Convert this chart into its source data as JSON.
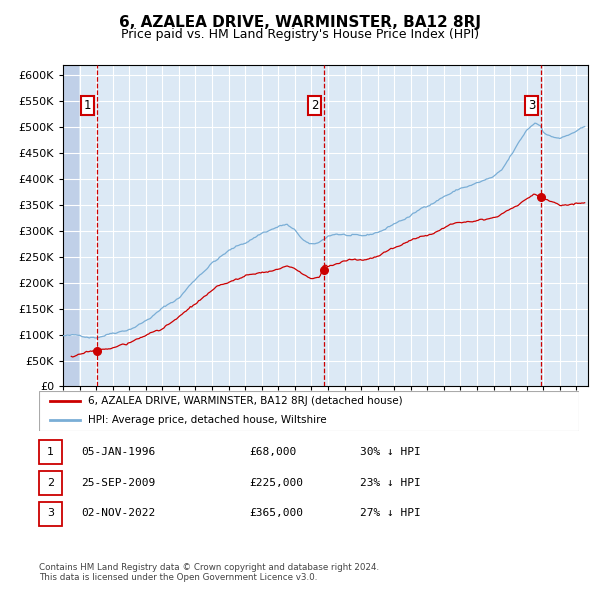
{
  "title": "6, AZALEA DRIVE, WARMINSTER, BA12 8RJ",
  "subtitle": "Price paid vs. HM Land Registry's House Price Index (HPI)",
  "background_color": "#dce9f5",
  "hatch_color": "#c0d0e8",
  "grid_color": "#ffffff",
  "red_line_color": "#cc0000",
  "blue_line_color": "#7aaed6",
  "sale_marker_color": "#cc0000",
  "vline_color": "#cc0000",
  "ylim": [
    0,
    620000
  ],
  "yticks": [
    0,
    50000,
    100000,
    150000,
    200000,
    250000,
    300000,
    350000,
    400000,
    450000,
    500000,
    550000,
    600000
  ],
  "xstart": 1994.0,
  "xend": 2025.7,
  "sales": [
    {
      "label": "1",
      "date_str": "05-JAN-1996",
      "year": 1996.03,
      "price": 68000
    },
    {
      "label": "2",
      "date_str": "25-SEP-2009",
      "year": 2009.73,
      "price": 225000
    },
    {
      "label": "3",
      "date_str": "02-NOV-2022",
      "year": 2022.84,
      "price": 365000
    }
  ],
  "legend_line1": "6, AZALEA DRIVE, WARMINSTER, BA12 8RJ (detached house)",
  "legend_line2": "HPI: Average price, detached house, Wiltshire",
  "table_rows": [
    {
      "num": "1",
      "date": "05-JAN-1996",
      "price": "£68,000",
      "hpi": "30% ↓ HPI"
    },
    {
      "num": "2",
      "date": "25-SEP-2009",
      "price": "£225,000",
      "hpi": "23% ↓ HPI"
    },
    {
      "num": "3",
      "date": "02-NOV-2022",
      "price": "£365,000",
      "hpi": "27% ↓ HPI"
    }
  ],
  "footnote": "Contains HM Land Registry data © Crown copyright and database right 2024.\nThis data is licensed under the Open Government Licence v3.0.",
  "blue_keypoints": [
    [
      1994.0,
      98000
    ],
    [
      1995.0,
      96000
    ],
    [
      1996.0,
      97000
    ],
    [
      1997.0,
      108000
    ],
    [
      1998.0,
      118000
    ],
    [
      1999.0,
      135000
    ],
    [
      2000.0,
      158000
    ],
    [
      2001.0,
      178000
    ],
    [
      2002.0,
      215000
    ],
    [
      2003.0,
      248000
    ],
    [
      2004.0,
      270000
    ],
    [
      2005.0,
      285000
    ],
    [
      2006.0,
      305000
    ],
    [
      2007.0,
      318000
    ],
    [
      2007.5,
      322000
    ],
    [
      2008.0,
      308000
    ],
    [
      2008.5,
      290000
    ],
    [
      2009.0,
      278000
    ],
    [
      2009.5,
      282000
    ],
    [
      2010.0,
      295000
    ],
    [
      2010.5,
      300000
    ],
    [
      2011.0,
      298000
    ],
    [
      2011.5,
      295000
    ],
    [
      2012.0,
      290000
    ],
    [
      2012.5,
      292000
    ],
    [
      2013.0,
      298000
    ],
    [
      2013.5,
      305000
    ],
    [
      2014.0,
      315000
    ],
    [
      2015.0,
      330000
    ],
    [
      2016.0,
      350000
    ],
    [
      2017.0,
      370000
    ],
    [
      2018.0,
      385000
    ],
    [
      2019.0,
      395000
    ],
    [
      2020.0,
      405000
    ],
    [
      2020.5,
      415000
    ],
    [
      2021.0,
      440000
    ],
    [
      2021.5,
      465000
    ],
    [
      2022.0,
      490000
    ],
    [
      2022.5,
      505000
    ],
    [
      2022.84,
      500000
    ],
    [
      2023.0,
      490000
    ],
    [
      2023.5,
      480000
    ],
    [
      2024.0,
      478000
    ],
    [
      2024.5,
      482000
    ],
    [
      2025.0,
      490000
    ],
    [
      2025.5,
      495000
    ]
  ],
  "red_keypoints": [
    [
      1994.5,
      58000
    ],
    [
      1995.0,
      60000
    ],
    [
      1996.03,
      68000
    ],
    [
      1997.0,
      74000
    ],
    [
      1998.0,
      82000
    ],
    [
      1999.0,
      96000
    ],
    [
      2000.0,
      112000
    ],
    [
      2001.0,
      130000
    ],
    [
      2002.0,
      155000
    ],
    [
      2003.0,
      176000
    ],
    [
      2004.0,
      192000
    ],
    [
      2005.0,
      202000
    ],
    [
      2006.0,
      210000
    ],
    [
      2007.0,
      218000
    ],
    [
      2007.5,
      222000
    ],
    [
      2008.0,
      215000
    ],
    [
      2008.5,
      205000
    ],
    [
      2009.0,
      195000
    ],
    [
      2009.5,
      200000
    ],
    [
      2009.73,
      225000
    ],
    [
      2010.0,
      222000
    ],
    [
      2010.5,
      228000
    ],
    [
      2011.0,
      232000
    ],
    [
      2011.5,
      235000
    ],
    [
      2012.0,
      232000
    ],
    [
      2012.5,
      235000
    ],
    [
      2013.0,
      240000
    ],
    [
      2013.5,
      248000
    ],
    [
      2014.0,
      255000
    ],
    [
      2015.0,
      268000
    ],
    [
      2016.0,
      280000
    ],
    [
      2017.0,
      295000
    ],
    [
      2018.0,
      308000
    ],
    [
      2019.0,
      318000
    ],
    [
      2020.0,
      325000
    ],
    [
      2020.5,
      330000
    ],
    [
      2021.0,
      340000
    ],
    [
      2021.5,
      350000
    ],
    [
      2022.0,
      360000
    ],
    [
      2022.5,
      370000
    ],
    [
      2022.84,
      365000
    ],
    [
      2023.0,
      360000
    ],
    [
      2023.5,
      355000
    ],
    [
      2024.0,
      350000
    ],
    [
      2024.5,
      352000
    ],
    [
      2025.0,
      355000
    ],
    [
      2025.5,
      358000
    ]
  ]
}
